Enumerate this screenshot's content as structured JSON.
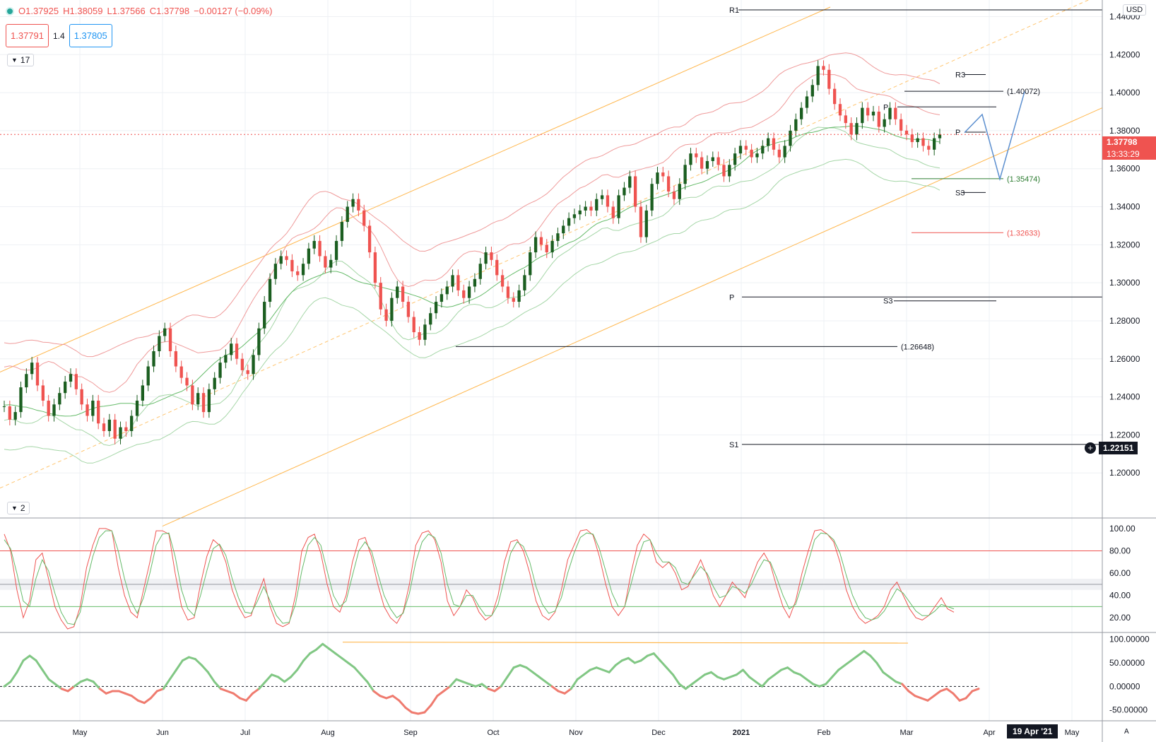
{
  "header": {
    "open": "O1.37925",
    "high": "H1.38059",
    "low": "L1.37566",
    "close": "C1.37798",
    "change": "−0.00127 (−0.09%)",
    "sell_price": "1.37791",
    "spread": "1.4",
    "buy_price": "1.37805",
    "indicators_toggle": "17",
    "currency": "USD",
    "last_price": "1.37798",
    "countdown": "13:33:29",
    "crosshair_price": "1.22151",
    "crosshair_date": "19 Apr '21",
    "auto_label": "A",
    "pane2_toggle": "2"
  },
  "colors": {
    "up": "#26a69a",
    "candle_up": "#1b5e20",
    "candle_down": "#ef5350",
    "channel": "#ffb74d",
    "bollinger_upper": "#ef9a9a",
    "bollinger_lower": "#a5d6a7",
    "projection": "#5c8fcf",
    "stoch_k": "#ef5350",
    "stoch_d": "#66bb6a"
  },
  "chart_data": [
    {
      "type": "candlestick",
      "ylim": [
        1.18,
        1.445
      ],
      "y_ticks": [
        "1.44000",
        "1.42000",
        "1.40000",
        "1.38000",
        "1.36000",
        "1.34000",
        "1.32000",
        "1.30000",
        "1.28000",
        "1.26000",
        "1.24000",
        "1.22000",
        "1.20000"
      ],
      "x_ticks": [
        "May",
        "Jun",
        "Jul",
        "Aug",
        "Sep",
        "Oct",
        "Nov",
        "Dec",
        "2021",
        "Feb",
        "Mar",
        "Apr",
        "May"
      ],
      "series": [
        {
          "name": "close",
          "values": [
            1.235,
            1.228,
            1.232,
            1.245,
            1.252,
            1.258,
            1.246,
            1.238,
            1.23,
            1.236,
            1.242,
            1.248,
            1.252,
            1.244,
            1.236,
            1.23,
            1.238,
            1.226,
            1.222,
            1.228,
            1.218,
            1.224,
            1.222,
            1.23,
            1.238,
            1.246,
            1.256,
            1.264,
            1.272,
            1.276,
            1.264,
            1.256,
            1.25,
            1.246,
            1.236,
            1.242,
            1.232,
            1.244,
            1.25,
            1.258,
            1.262,
            1.268,
            1.26,
            1.254,
            1.252,
            1.262,
            1.276,
            1.29,
            1.302,
            1.31,
            1.314,
            1.312,
            1.306,
            1.304,
            1.31,
            1.318,
            1.322,
            1.314,
            1.308,
            1.312,
            1.322,
            1.332,
            1.34,
            1.344,
            1.338,
            1.33,
            1.316,
            1.3,
            1.286,
            1.28,
            1.292,
            1.298,
            1.29,
            1.282,
            1.274,
            1.27,
            1.278,
            1.284,
            1.29,
            1.294,
            1.298,
            1.304,
            1.296,
            1.292,
            1.298,
            1.302,
            1.31,
            1.316,
            1.312,
            1.304,
            1.298,
            1.292,
            1.29,
            1.296,
            1.304,
            1.316,
            1.324,
            1.32,
            1.316,
            1.322,
            1.326,
            1.33,
            1.334,
            1.336,
            1.338,
            1.34,
            1.338,
            1.344,
            1.346,
            1.34,
            1.334,
            1.346,
            1.35,
            1.356,
            1.34,
            1.324,
            1.338,
            1.352,
            1.358,
            1.356,
            1.348,
            1.344,
            1.352,
            1.362,
            1.368,
            1.366,
            1.36,
            1.364,
            1.366,
            1.362,
            1.356,
            1.362,
            1.368,
            1.372,
            1.37,
            1.366,
            1.368,
            1.372,
            1.376,
            1.37,
            1.366,
            1.372,
            1.38,
            1.386,
            1.392,
            1.398,
            1.404,
            1.414,
            1.412,
            1.402,
            1.394,
            1.388,
            1.384,
            1.378,
            1.384,
            1.392,
            1.388,
            1.39,
            1.382,
            1.386,
            1.392,
            1.386,
            1.38,
            1.378,
            1.374,
            1.376,
            1.372,
            1.37,
            1.376,
            1.378
          ]
        },
        {
          "name": "Pivot levels",
          "labels": [
            "R1",
            "R3",
            "P",
            "P",
            "S3",
            "P",
            "S3",
            "S1"
          ],
          "values": [
            1.4435,
            1.4095,
            1.3925,
            1.3792,
            1.3475,
            1.2925,
            1.2905,
            1.215
          ]
        },
        {
          "name": "Horizontal levels",
          "labels": [
            "(1.40072)",
            "(1.35474)",
            "(1.32633)",
            "(1.26648)"
          ],
          "values": [
            1.40072,
            1.35474,
            1.32633,
            1.26648
          ]
        },
        {
          "name": "Projection",
          "values": [
            1.379,
            1.3885,
            1.3545,
            1.4005
          ]
        }
      ]
    },
    {
      "type": "line",
      "ylim": [
        10,
        105
      ],
      "y_ticks": [
        "100.00",
        "80.00",
        "60.00",
        "40.00",
        "20.00"
      ],
      "series": [
        {
          "name": "%K",
          "values": [
            95,
            80,
            45,
            20,
            35,
            72,
            78,
            55,
            30,
            18,
            10,
            12,
            30,
            65,
            85,
            100,
            100,
            98,
            65,
            40,
            25,
            20,
            45,
            70,
            98,
            98,
            95,
            60,
            30,
            18,
            20,
            50,
            75,
            90,
            85,
            70,
            45,
            30,
            20,
            22,
            40,
            55,
            30,
            15,
            12,
            15,
            40,
            80,
            92,
            95,
            78,
            50,
            30,
            25,
            40,
            70,
            90,
            92,
            75,
            50,
            30,
            20,
            15,
            25,
            50,
            85,
            96,
            98,
            90,
            70,
            35,
            22,
            30,
            45,
            38,
            25,
            18,
            22,
            40,
            70,
            88,
            90,
            80,
            60,
            35,
            22,
            18,
            25,
            45,
            72,
            85,
            98,
            99,
            94,
            75,
            50,
            30,
            22,
            30,
            60,
            85,
            95,
            90,
            70,
            65,
            70,
            60,
            45,
            48,
            60,
            72,
            58,
            40,
            30,
            40,
            52,
            45,
            38,
            55,
            70,
            78,
            68,
            48,
            30,
            20,
            35,
            60,
            80,
            98,
            99,
            95,
            88,
            70,
            45,
            30,
            20,
            15,
            18,
            22,
            30,
            45,
            52,
            40,
            28,
            20,
            18,
            22,
            30,
            38,
            28,
            25
          ]
        },
        {
          "name": "%D",
          "values": [
            90,
            82,
            60,
            35,
            30,
            55,
            72,
            62,
            42,
            25,
            15,
            14,
            25,
            52,
            75,
            92,
            98,
            98,
            80,
            55,
            35,
            24,
            38,
            60,
            85,
            95,
            96,
            75,
            45,
            28,
            22,
            40,
            62,
            82,
            86,
            76,
            55,
            38,
            25,
            24,
            35,
            48,
            35,
            22,
            15,
            16,
            32,
            62,
            85,
            92,
            85,
            62,
            40,
            30,
            35,
            58,
            80,
            88,
            80,
            60,
            40,
            28,
            20,
            24,
            42,
            70,
            88,
            95,
            92,
            78,
            50,
            32,
            30,
            40,
            40,
            30,
            22,
            22,
            32,
            55,
            78,
            88,
            84,
            70,
            48,
            32,
            24,
            26,
            38,
            60,
            78,
            92,
            96,
            95,
            82,
            62,
            42,
            30,
            30,
            50,
            72,
            88,
            90,
            78,
            70,
            70,
            65,
            52,
            50,
            58,
            66,
            60,
            48,
            38,
            40,
            48,
            46,
            42,
            50,
            62,
            72,
            70,
            56,
            40,
            28,
            32,
            50,
            70,
            90,
            96,
            95,
            90,
            78,
            58,
            40,
            28,
            20,
            18,
            20,
            26,
            36,
            46,
            42,
            34,
            26,
            22,
            22,
            26,
            32,
            30,
            28
          ]
        }
      ],
      "hlines": [
        80,
        50,
        30
      ]
    },
    {
      "type": "area",
      "ylim": [
        -70,
        110
      ],
      "y_ticks": [
        "100.00000",
        "50.00000",
        "0.00000",
        "-50.00000"
      ],
      "series": [
        {
          "name": "Momentum",
          "values": [
            0,
            10,
            30,
            55,
            65,
            55,
            35,
            15,
            5,
            -5,
            -10,
            0,
            10,
            15,
            10,
            -5,
            -15,
            -10,
            -10,
            -15,
            -20,
            -30,
            -35,
            -25,
            -10,
            -5,
            15,
            35,
            55,
            62,
            58,
            45,
            30,
            10,
            -5,
            -10,
            -15,
            -25,
            -30,
            -15,
            -5,
            10,
            25,
            20,
            10,
            20,
            35,
            55,
            70,
            78,
            90,
            80,
            70,
            60,
            50,
            40,
            25,
            10,
            -10,
            -20,
            -25,
            -20,
            -30,
            -45,
            -55,
            -58,
            -55,
            -40,
            -20,
            -10,
            0,
            15,
            10,
            5,
            0,
            5,
            -5,
            -10,
            0,
            20,
            40,
            45,
            40,
            30,
            20,
            10,
            0,
            -10,
            -15,
            -5,
            15,
            25,
            35,
            40,
            35,
            30,
            45,
            55,
            60,
            50,
            55,
            65,
            70,
            55,
            40,
            25,
            5,
            -5,
            5,
            15,
            25,
            30,
            20,
            15,
            20,
            25,
            35,
            20,
            10,
            0,
            15,
            25,
            35,
            40,
            30,
            25,
            15,
            5,
            0,
            5,
            20,
            35,
            45,
            55,
            65,
            75,
            65,
            50,
            30,
            20,
            10,
            5,
            -10,
            -20,
            -25,
            -30,
            -20,
            -10,
            -5,
            -15,
            -30,
            -25,
            -10,
            -5
          ]
        }
      ],
      "hlines": [
        0,
        94
      ]
    }
  ]
}
